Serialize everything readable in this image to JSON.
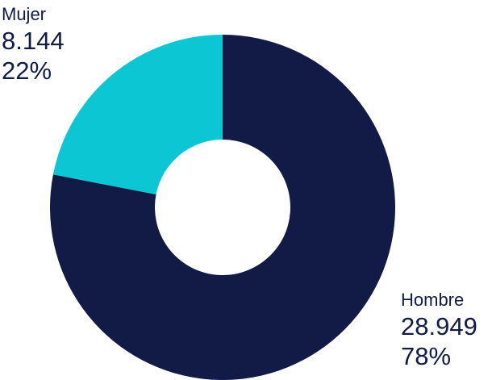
{
  "chart_data": {
    "type": "pie",
    "title": "",
    "donut": true,
    "text_color": "#111b45",
    "slices": [
      {
        "label": "Hombre",
        "value": 28949,
        "value_text": "28.949",
        "percent_text": "78%",
        "color": "#111b45"
      },
      {
        "label": "Mujer",
        "value": 8144,
        "value_text": "8.144",
        "percent_text": "22%",
        "color": "#0cc6d3"
      }
    ]
  }
}
